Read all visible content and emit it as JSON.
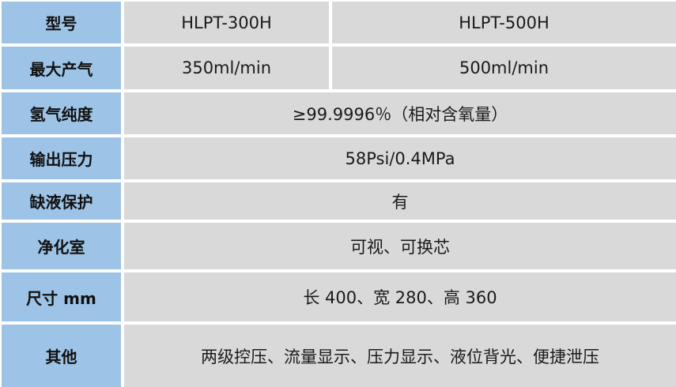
{
  "colors": {
    "label_bg": "#9dc3e6",
    "value_bg": "#d9d9d9"
  },
  "rows": [
    {
      "label": "型号",
      "values": [
        "HLPT-300H",
        "HLPT-500H"
      ]
    },
    {
      "label": "最大产气",
      "values": [
        "350ml/min",
        "500ml/min"
      ]
    },
    {
      "label": "氢气纯度",
      "value": "≥99.9996％（相对含氧量）"
    },
    {
      "label": "输出压力",
      "value": "58Psi/0.4MPa"
    },
    {
      "label": "缺液保护",
      "value": "有"
    },
    {
      "label": "净化室",
      "value": "可视、可换芯"
    },
    {
      "label": "尺寸 mm",
      "value": "长 400、宽 280、高 360"
    },
    {
      "label": "其他",
      "value": "两级控压、流量显示、压力显示、液位背光、便捷泄压"
    }
  ]
}
